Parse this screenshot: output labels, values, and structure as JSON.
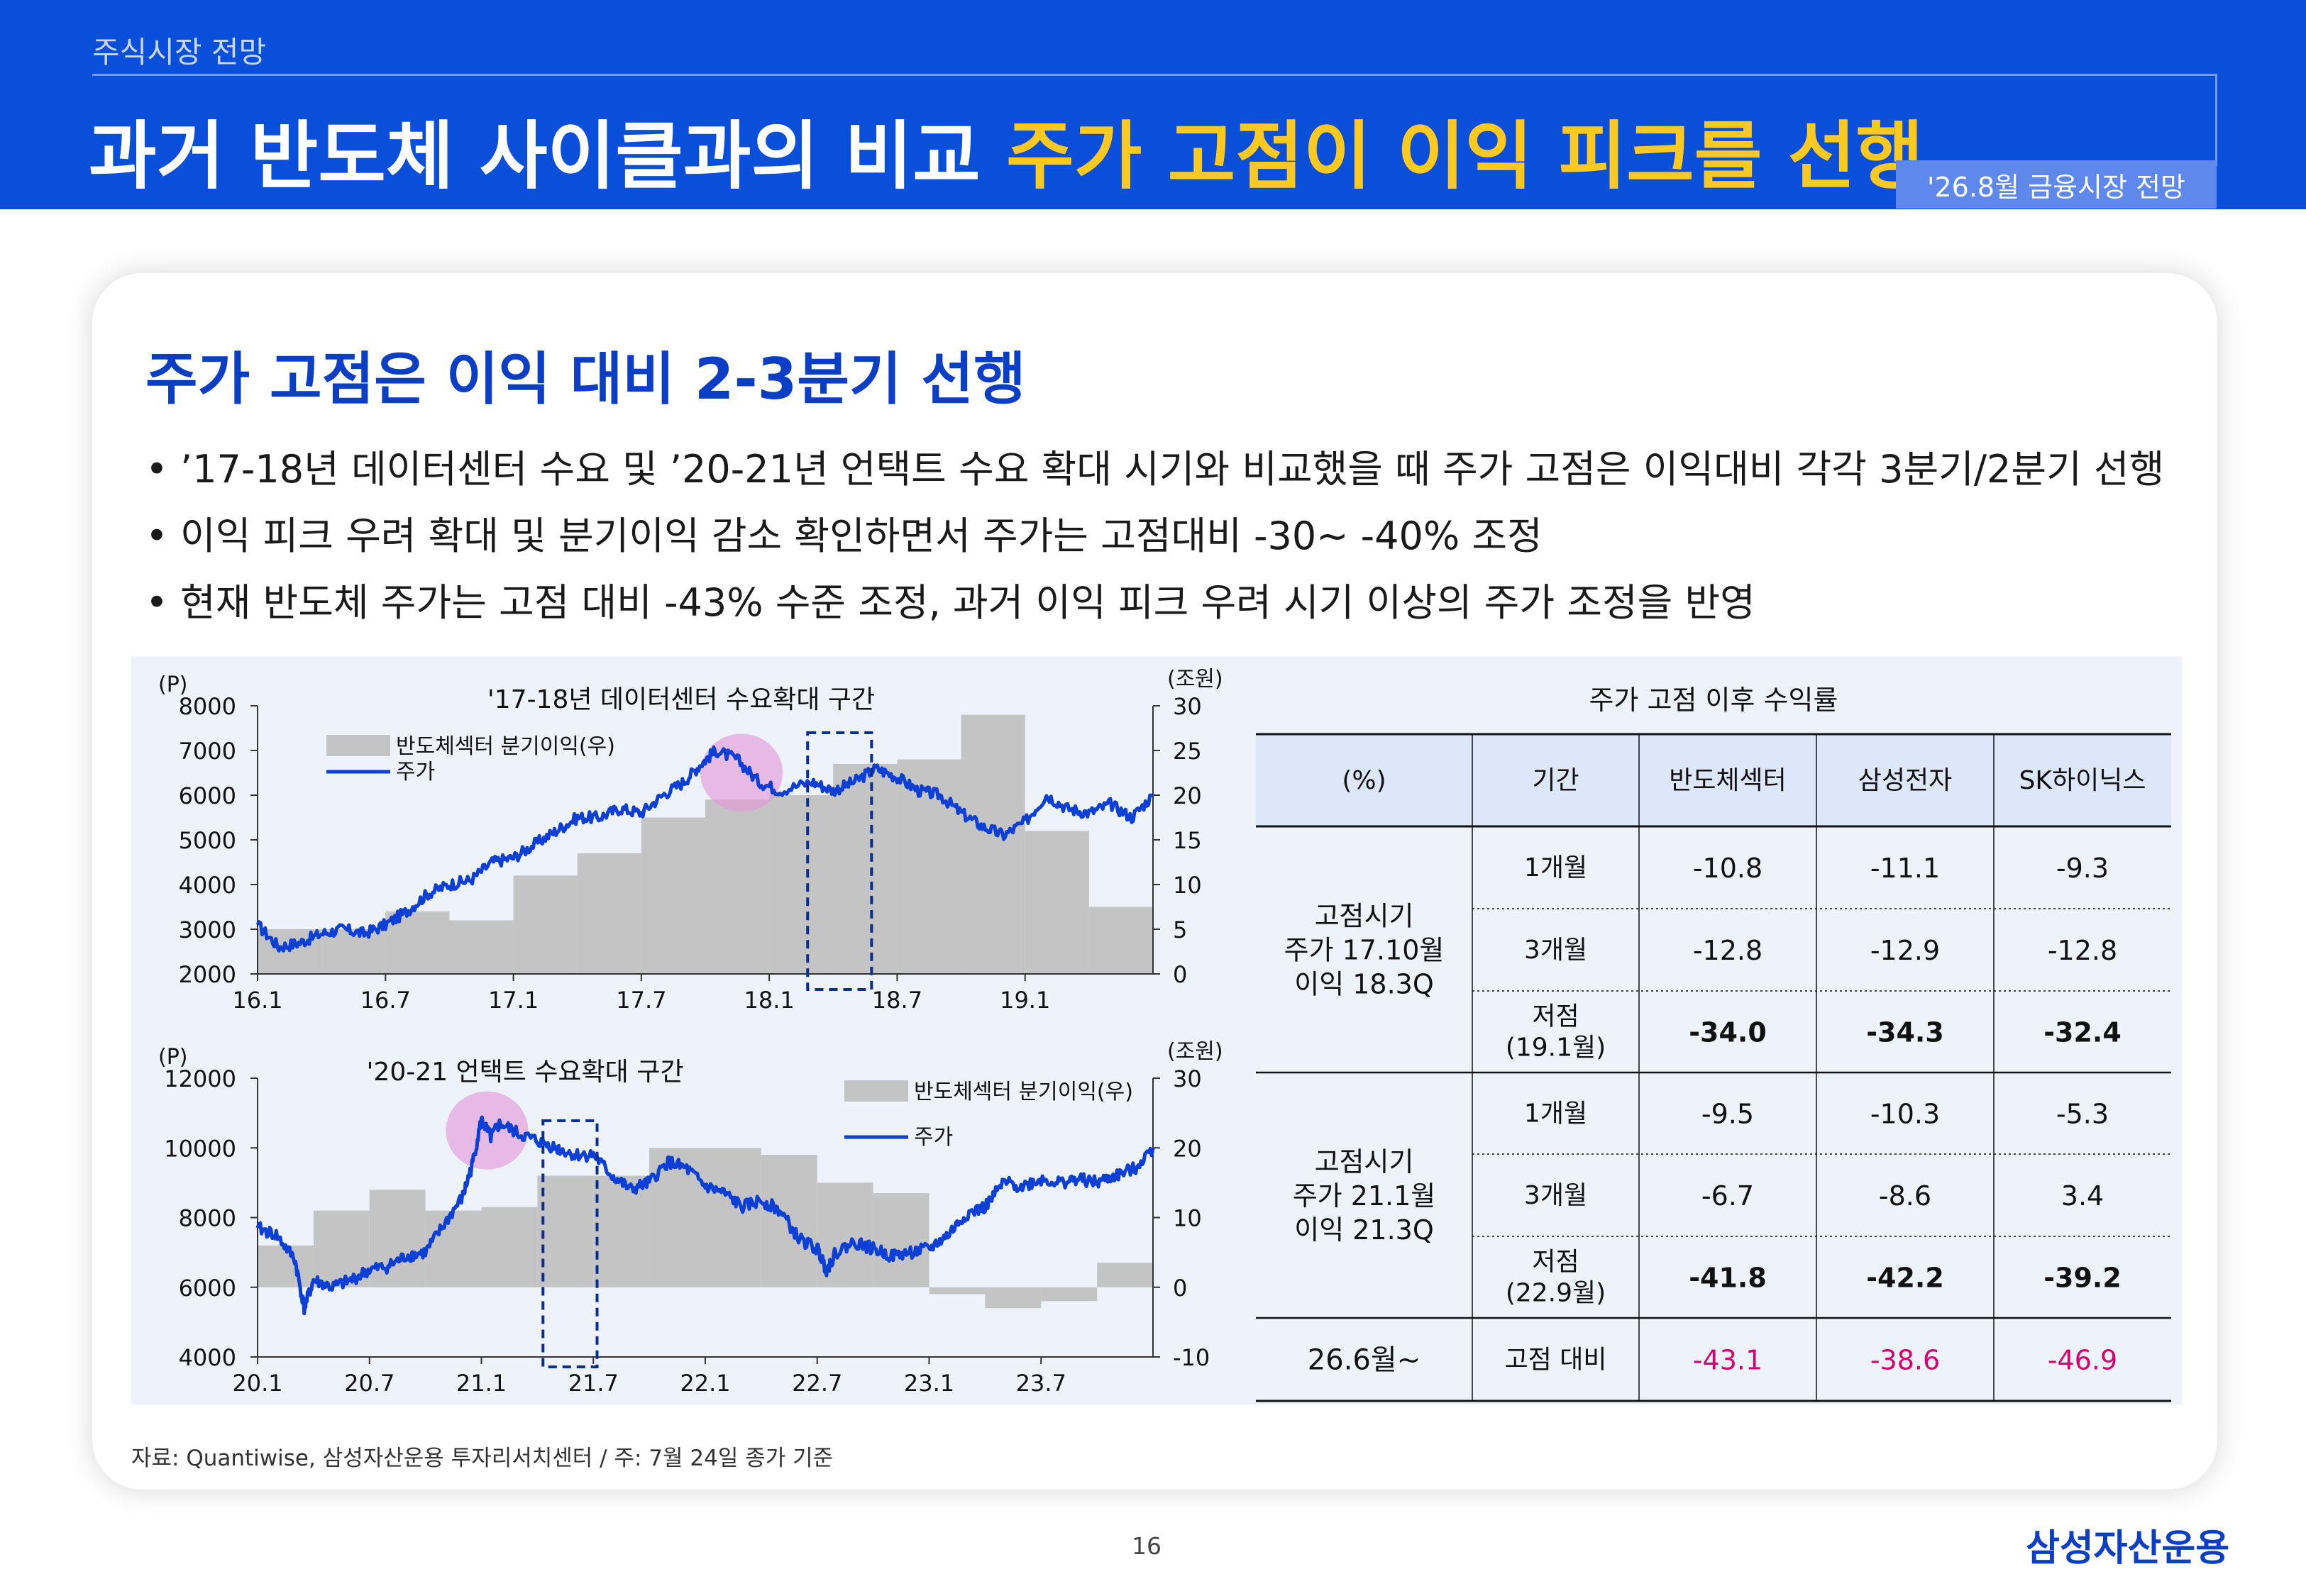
{
  "header": {
    "breadcrumb": "주식시장 전망",
    "title_main": "과거 반도체 사이클과의 비교",
    "title_highlight": "주가 고점이 이익 피크를 선행",
    "badge": "'26.8월 금융시장 전망"
  },
  "section": {
    "subtitle": "주가 고점은 이익 대비 2-3분기 선행",
    "bullets": [
      "’17-18년 데이터센터 수요 및 ’20-21년 언택트 수요 확대 시기와 비교했을 때 주가 고점은 이익대비 각각 3분기/2분기 선행",
      "이익 피크 우려 확대 및 분기이익 감소 확인하면서 주가는 고점대비 -30~ -40% 조정",
      "현재 반도체 주가는 고점 대비 -43% 수준 조정, 과거 이익 피크 우려 시기 이상의 주가 조정을 반영"
    ]
  },
  "chart_data": [
    {
      "type": "bar+line",
      "title": "'17-18년 데이터센터 수요확대 구간",
      "y_left_unit": "(P)",
      "y_right_unit": "(조원)",
      "ylim_left": [
        2000,
        8000
      ],
      "yticks_left": [
        "8000",
        "7000",
        "6000",
        "5000",
        "4000",
        "3000",
        "2000"
      ],
      "ylim_right": [
        0,
        30
      ],
      "yticks_right": [
        "30",
        "25",
        "20",
        "15",
        "10",
        "5",
        "0"
      ],
      "xticks": [
        "16.1",
        "16.7",
        "17.1",
        "17.7",
        "18.1",
        "18.7",
        "19.1"
      ],
      "xlim": [
        0,
        42
      ],
      "legend": [
        "반도체섹터 분기이익(우)",
        "주가"
      ],
      "series": [
        {
          "name": "반도체섹터 분기이익(우)",
          "kind": "step-bar",
          "x": [
            0,
            3,
            6,
            9,
            12,
            15,
            18,
            21,
            24,
            27,
            30,
            33,
            36,
            39,
            42
          ],
          "values": [
            5,
            5,
            7,
            6,
            11,
            13.5,
            17.5,
            19.5,
            20,
            23.5,
            24,
            29,
            16,
            7.5,
            7.5
          ]
        },
        {
          "name": "주가",
          "kind": "line",
          "x": [
            0,
            1,
            2,
            3,
            4,
            5,
            6,
            7,
            8,
            9,
            10,
            11,
            12,
            13,
            14,
            15,
            16,
            17,
            18,
            19,
            20,
            20.8,
            21.5,
            22.5,
            23.5,
            24.5,
            26,
            27,
            28,
            29,
            30,
            31,
            32,
            33,
            34,
            35,
            36,
            37,
            38,
            39,
            40,
            41,
            42
          ],
          "values": [
            3100,
            2600,
            2700,
            2900,
            3000,
            2900,
            3100,
            3400,
            3800,
            4000,
            4100,
            4500,
            4600,
            4900,
            5200,
            5500,
            5500,
            5700,
            5600,
            6000,
            6300,
            6700,
            7000,
            6800,
            6300,
            6100,
            6300,
            6100,
            6300,
            6600,
            6400,
            6100,
            6000,
            5600,
            5300,
            5100,
            5400,
            6000,
            5700,
            5600,
            5800,
            5500,
            6000
          ]
        }
      ],
      "annotations": [
        "주가 고점 원형 표시 (17.11)",
        "이익 피크 점선 박스 (18.7~18.9)"
      ]
    },
    {
      "type": "bar+line",
      "title": "'20-21 언택트 수요확대 구간",
      "y_left_unit": "(P)",
      "y_right_unit": "(조원)",
      "ylim_left": [
        4000,
        12000
      ],
      "yticks_left": [
        "12000",
        "10000",
        "8000",
        "6000",
        "4000"
      ],
      "ylim_right": [
        -10,
        30
      ],
      "yticks_right": [
        "30",
        "20",
        "10",
        "0",
        "-10"
      ],
      "xticks": [
        "20.1",
        "20.7",
        "21.1",
        "21.7",
        "22.1",
        "22.7",
        "23.1",
        "23.7"
      ],
      "xlim": [
        0,
        48
      ],
      "legend": [
        "반도체섹터 분기이익(우)",
        "주가"
      ],
      "series": [
        {
          "name": "반도체섹터 분기이익(우)",
          "kind": "step-bar",
          "x": [
            0,
            3,
            6,
            9,
            12,
            15,
            18,
            21,
            24,
            27,
            30,
            33,
            36,
            39,
            42,
            45,
            48
          ],
          "values": [
            6,
            11,
            14,
            11,
            11.5,
            16,
            16,
            20,
            20,
            19,
            15,
            13.5,
            -1,
            -3,
            -2,
            3.5,
            3.5
          ]
        },
        {
          "name": "주가",
          "kind": "line",
          "x": [
            0,
            1,
            2,
            2.5,
            3,
            4,
            5,
            6,
            7,
            8,
            9,
            10,
            11,
            11.5,
            12,
            12.5,
            13,
            14,
            15,
            16,
            17,
            18,
            19,
            20,
            21,
            22,
            23,
            24,
            25,
            26,
            27,
            28,
            29,
            30,
            30.5,
            31,
            32,
            33,
            34,
            35,
            36,
            37,
            38,
            39,
            40,
            41,
            42,
            43,
            44,
            45,
            46,
            47,
            48
          ],
          "values": [
            7700,
            7500,
            6800,
            5400,
            6200,
            6000,
            6200,
            6500,
            6600,
            6900,
            7000,
            7800,
            8600,
            9500,
            10800,
            10300,
            10700,
            10400,
            10200,
            10000,
            9800,
            9800,
            9200,
            8800,
            9000,
            9600,
            9400,
            8900,
            8700,
            8300,
            8500,
            8200,
            7400,
            7100,
            6500,
            7000,
            7300,
            7100,
            6900,
            7000,
            7100,
            7500,
            8100,
            8300,
            9000,
            8900,
            9100,
            9000,
            9100,
            9000,
            9200,
            9400,
            10000
          ]
        }
      ],
      "annotations": [
        "주가 고점 원형 표시 (21.1)",
        "이익 피크 점선 박스 (21.7~21.9)"
      ]
    },
    {
      "type": "table",
      "title": "주가 고점 이후 수익률",
      "columns": [
        "(%)",
        "기간",
        "반도체섹터",
        "삼성전자",
        "SK하이닉스"
      ],
      "groups": [
        {
          "label": [
            "고점시기",
            "주가 17.10월",
            "이익 18.3Q"
          ],
          "rows": [
            {
              "period": [
                "1개월"
              ],
              "values": [
                "-10.8",
                "-11.1",
                "-9.3"
              ],
              "bold": false
            },
            {
              "period": [
                "3개월"
              ],
              "values": [
                "-12.8",
                "-12.9",
                "-12.8"
              ],
              "bold": false
            },
            {
              "period": [
                "저점",
                "(19.1월)"
              ],
              "values": [
                "-34.0",
                "-34.3",
                "-32.4"
              ],
              "bold": true
            }
          ]
        },
        {
          "label": [
            "고점시기",
            "주가 21.1월",
            "이익 21.3Q"
          ],
          "rows": [
            {
              "period": [
                "1개월"
              ],
              "values": [
                "-9.5",
                "-10.3",
                "-5.3"
              ],
              "bold": false
            },
            {
              "period": [
                "3개월"
              ],
              "values": [
                "-6.7",
                "-8.6",
                "3.4"
              ],
              "bold": false
            },
            {
              "period": [
                "저점",
                "(22.9월)"
              ],
              "values": [
                "-41.8",
                "-42.2",
                "-39.2"
              ],
              "bold": true
            }
          ]
        },
        {
          "label": [
            "26.6월~"
          ],
          "rows": [
            {
              "period": [
                "고점 대비"
              ],
              "values": [
                "-43.1",
                "-38.6",
                "-46.9"
              ],
              "bold": false,
              "highlight": true
            }
          ]
        }
      ]
    }
  ],
  "colors": {
    "brand_blue": "#0a4fd9",
    "highlight_yellow": "#ffc91f",
    "line_blue": "#0b3fd6",
    "bar_gray": "#c4c4c4",
    "peak_circle": "#e39ad8",
    "table_header_bg": "#dde7fa",
    "negative_pink": "#d6006e"
  },
  "footer": {
    "source": "자료: Quantiwise, 삼성자산운용 투자리서치센터 / 주: 7월 24일 종가 기준",
    "page_number": "16",
    "logo": "삼성자산운용"
  }
}
